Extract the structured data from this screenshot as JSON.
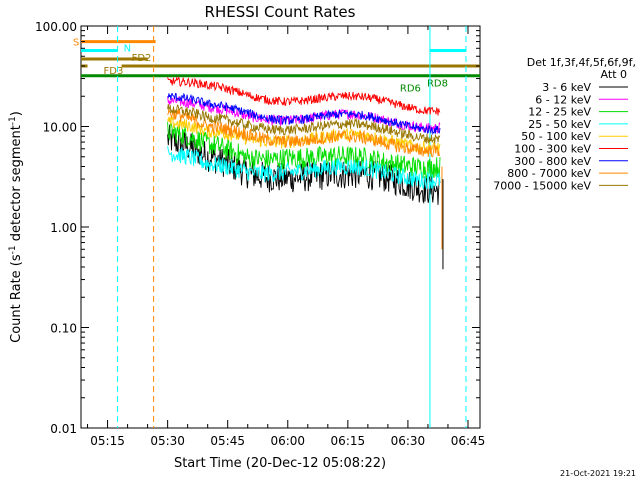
{
  "chart_data": {
    "type": "line",
    "title": "RHESSI Count Rates",
    "xlabel": "Start Time (20-Dec-12 05:08:22)",
    "ylabel_main": "Count Rate (s",
    "ylabel_sup1": "-1",
    "ylabel_mid": " detector segment",
    "ylabel_sup2": "-1",
    "ylabel_end": ")",
    "timestamp": "21-Oct-2021 19:21",
    "xlim": [
      "05:08:22",
      "06:48:00"
    ],
    "ylim": [
      0.01,
      100
    ],
    "yscale": "log",
    "x_ticks": [
      "05:15",
      "05:30",
      "05:45",
      "06:00",
      "06:15",
      "06:30",
      "06:45"
    ],
    "y_ticks": [
      "0.01",
      "0.10",
      "1.00",
      "10.00",
      "100.00"
    ],
    "legend": {
      "title": "Det 1f,3f,4f,5f,6f,9f,",
      "subtitle": "Att 0",
      "placement": "right"
    },
    "series": [
      {
        "name": "3 - 6 keV",
        "color": "#000000",
        "values": [
          7.5,
          4.5,
          3.5,
          3.5,
          3.0,
          3.0,
          2.6
        ]
      },
      {
        "name": "6 - 12 keV",
        "color": "#ff00ff",
        "values": [
          18,
          14,
          13,
          13,
          12,
          11,
          11
        ]
      },
      {
        "name": "12 - 25 keV",
        "color": "#00dd00",
        "values": [
          9,
          6,
          5,
          5.5,
          4.5,
          4.2,
          4.5
        ]
      },
      {
        "name": "25 - 50 keV",
        "color": "#00ffff",
        "values": [
          5.5,
          3.8,
          3.6,
          4.0,
          3.6,
          3.3,
          3.3
        ]
      },
      {
        "name": "50 - 100 keV",
        "color": "#ffcc00",
        "values": [
          11,
          8,
          7.8,
          8,
          7.5,
          7,
          7
        ]
      },
      {
        "name": "100 - 300 keV",
        "color": "#ff0000",
        "values": [
          28,
          23,
          21,
          20,
          18,
          17,
          16
        ]
      },
      {
        "name": "300 - 800 keV",
        "color": "#0000ff",
        "values": [
          20,
          15,
          14,
          13,
          12,
          11,
          10.5
        ]
      },
      {
        "name": "800 - 7000 keV",
        "color": "#ff8800",
        "values": [
          14,
          9,
          8.5,
          8,
          7.2,
          6.5,
          6.5
        ]
      },
      {
        "name": "7000 - 15000 keV",
        "color": "#997700",
        "values": [
          15,
          11,
          10.5,
          10.5,
          9.5,
          9,
          8.5
        ]
      }
    ],
    "series_times": [
      "05:30",
      "05:40",
      "05:50",
      "06:00",
      "06:15",
      "06:25",
      "06:38"
    ],
    "markers": [
      {
        "label": "S",
        "color": "#ff8800"
      },
      {
        "label": "N",
        "color": "#00ffff"
      },
      {
        "label": "FD2",
        "color": "#997700"
      },
      {
        "label": "FD3",
        "color": "#997700"
      },
      {
        "label": "RD6",
        "color": "#008800"
      },
      {
        "label": "RD8",
        "color": "#008800"
      }
    ],
    "grid": false
  }
}
